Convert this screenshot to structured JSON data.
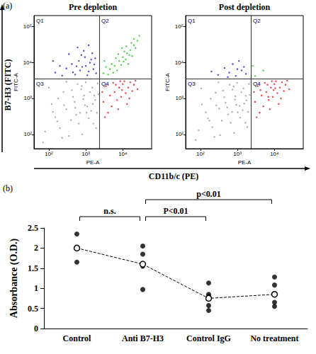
{
  "figure": {
    "panel_a": "(a)",
    "panel_b": "(b)",
    "y_label": "B7-H3 (FITC)",
    "x_label": "CD11b/c (PE)"
  },
  "chart_data": [
    {
      "type": "scatter",
      "title": "Pre depletion",
      "x_label": "PE-A",
      "y_label": "FITC-A",
      "log": true,
      "xlim": [
        40,
        60000
      ],
      "ylim": [
        40,
        200000
      ],
      "xticks": [
        {
          "value": 100,
          "label": "10²"
        },
        {
          "value": 1000,
          "label": "10³"
        },
        {
          "value": 10000,
          "label": "10⁴"
        }
      ],
      "yticks": [
        {
          "value": 100,
          "label": "10²"
        },
        {
          "value": 1000,
          "label": "10³"
        },
        {
          "value": 10000,
          "label": "10⁴"
        },
        {
          "value": 100000,
          "label": "10⁵"
        }
      ],
      "gates": {
        "x": 2300,
        "y": 3500
      },
      "quadrant_labels": [
        "Q1",
        "Q2",
        "Q3",
        "Q4"
      ],
      "series": [
        {
          "color": "#a0a0a0",
          "marker": "circle",
          "values": [
            [
              80,
              120
            ],
            [
              150,
              300
            ],
            [
              300,
              500
            ],
            [
              500,
              800
            ],
            [
              900,
              1200
            ],
            [
              1500,
              2000
            ],
            [
              200,
              150
            ],
            [
              400,
              250
            ],
            [
              700,
              400
            ],
            [
              1100,
              600
            ],
            [
              1800,
              900
            ],
            [
              120,
              700
            ],
            [
              250,
              1500
            ],
            [
              600,
              2500
            ],
            [
              1000,
              2800
            ],
            [
              2000,
              400
            ],
            [
              1600,
              200
            ],
            [
              800,
              100
            ],
            [
              350,
              90
            ],
            [
              100,
              2000
            ],
            [
              180,
              1000
            ],
            [
              450,
              1100
            ],
            [
              750,
              1800
            ],
            [
              1300,
              1500
            ],
            [
              2100,
              2600
            ],
            [
              550,
              350
            ],
            [
              950,
              650
            ],
            [
              1400,
              450
            ],
            [
              260,
              650
            ],
            [
              130,
              420
            ],
            [
              650,
              200
            ],
            [
              1200,
              280
            ],
            [
              2200,
              1300
            ],
            [
              420,
              1700
            ],
            [
              850,
              950
            ],
            [
              1700,
              1200
            ],
            [
              300,
              2900
            ],
            [
              170,
              230
            ],
            [
              70,
              60
            ],
            [
              1900,
              150
            ],
            [
              520,
              550
            ],
            [
              1050,
              400
            ],
            [
              230,
              80
            ],
            [
              780,
              2200
            ],
            [
              1550,
              700
            ]
          ]
        },
        {
          "color": "#2a2ac8",
          "marker": "circle",
          "values": [
            [
              150,
              5200
            ],
            [
              300,
              6800
            ],
            [
              520,
              4600
            ],
            [
              800,
              7500
            ],
            [
              1200,
              5600
            ],
            [
              1700,
              8800
            ],
            [
              650,
              11000
            ],
            [
              420,
              9000
            ],
            [
              950,
              14000
            ],
            [
              1400,
              12000
            ],
            [
              230,
              4300
            ],
            [
              1100,
              4400
            ],
            [
              700,
              6000
            ],
            [
              1900,
              5000
            ],
            [
              350,
              17000
            ],
            [
              880,
              21000
            ],
            [
              1500,
              18000
            ],
            [
              560,
              7800
            ],
            [
              1300,
              9800
            ],
            [
              200,
              8000
            ],
            [
              1000,
              8000
            ],
            [
              1600,
              6500
            ],
            [
              450,
              5300
            ],
            [
              760,
              16000
            ],
            [
              1800,
              13000
            ],
            [
              600,
              26000
            ],
            [
              1200,
              30000
            ],
            [
              130,
              11000
            ]
          ]
        },
        {
          "color": "#33c433",
          "marker": "circle",
          "values": [
            [
              3000,
              5000
            ],
            [
              4500,
              6500
            ],
            [
              6000,
              8000
            ],
            [
              8000,
              11000
            ],
            [
              10000,
              14000
            ],
            [
              13000,
              18000
            ],
            [
              16000,
              22000
            ],
            [
              20000,
              30000
            ],
            [
              25000,
              40000
            ],
            [
              7000,
              6000
            ],
            [
              5000,
              9000
            ],
            [
              9000,
              8500
            ],
            [
              12000,
              12000
            ],
            [
              15000,
              16000
            ],
            [
              3500,
              7500
            ],
            [
              11000,
              20000
            ],
            [
              18000,
              15000
            ],
            [
              22000,
              25000
            ],
            [
              6500,
              13000
            ],
            [
              4000,
              4600
            ],
            [
              14000,
              9000
            ],
            [
              9500,
              25000
            ],
            [
              28000,
              55000
            ],
            [
              17000,
              35000
            ],
            [
              5500,
              5200
            ],
            [
              7500,
              17000
            ],
            [
              12500,
              28000
            ],
            [
              3200,
              11000
            ],
            [
              20000,
              45000
            ],
            [
              10500,
              10500
            ]
          ]
        },
        {
          "color": "#e02020",
          "marker": "circle",
          "values": [
            [
              3000,
              800
            ],
            [
              4500,
              1200
            ],
            [
              6000,
              1500
            ],
            [
              8000,
              2000
            ],
            [
              10000,
              2500
            ],
            [
              14000,
              2000
            ],
            [
              18000,
              1600
            ],
            [
              5000,
              600
            ],
            [
              7000,
              900
            ],
            [
              9000,
              1100
            ],
            [
              12000,
              1400
            ],
            [
              3500,
              2200
            ],
            [
              5500,
              2700
            ],
            [
              11000,
              3000
            ],
            [
              16000,
              2800
            ],
            [
              20000,
              2400
            ],
            [
              25000,
              1800
            ],
            [
              7500,
              500
            ],
            [
              13000,
              700
            ],
            [
              4000,
              400
            ],
            [
              9500,
              1700
            ],
            [
              6500,
              2400
            ],
            [
              15000,
              1000
            ],
            [
              22000,
              3100
            ],
            [
              2800,
              1500
            ],
            [
              3300,
              300
            ],
            [
              8500,
              3000
            ]
          ]
        }
      ]
    },
    {
      "type": "scatter",
      "title": "Post depletion",
      "x_label": "PE-A",
      "y_label": "FITC-A",
      "log": true,
      "xlim": [
        40,
        60000
      ],
      "ylim": [
        40,
        200000
      ],
      "xticks": [
        {
          "value": 100,
          "label": "10²"
        },
        {
          "value": 1000,
          "label": "10³"
        },
        {
          "value": 10000,
          "label": "10⁴"
        }
      ],
      "yticks": [
        {
          "value": 100,
          "label": "10²"
        },
        {
          "value": 1000,
          "label": "10³"
        },
        {
          "value": 10000,
          "label": "10⁴"
        },
        {
          "value": 100000,
          "label": "10⁵"
        }
      ],
      "gates": {
        "x": 2300,
        "y": 3500
      },
      "quadrant_labels": [
        "Q1",
        "Q2",
        "Q3",
        "Q4"
      ],
      "series": [
        {
          "color": "#a0a0a0",
          "marker": "circle",
          "values": [
            [
              90,
              130
            ],
            [
              160,
              280
            ],
            [
              320,
              520
            ],
            [
              480,
              760
            ],
            [
              880,
              1150
            ],
            [
              1450,
              1900
            ],
            [
              210,
              160
            ],
            [
              380,
              240
            ],
            [
              720,
              420
            ],
            [
              1150,
              620
            ],
            [
              1750,
              880
            ],
            [
              110,
              680
            ],
            [
              260,
              1450
            ],
            [
              620,
              2400
            ],
            [
              980,
              2700
            ],
            [
              1950,
              420
            ],
            [
              1650,
              210
            ],
            [
              820,
              110
            ],
            [
              340,
              95
            ],
            [
              105,
              1900
            ],
            [
              190,
              980
            ],
            [
              440,
              1080
            ],
            [
              740,
              1750
            ],
            [
              1280,
              1480
            ],
            [
              2050,
              2500
            ],
            [
              560,
              360
            ],
            [
              930,
              660
            ],
            [
              1380,
              470
            ],
            [
              270,
              640
            ],
            [
              140,
              410
            ],
            [
              660,
              210
            ],
            [
              1180,
              290
            ],
            [
              2150,
              1250
            ],
            [
              410,
              1650
            ],
            [
              860,
              920
            ],
            [
              1680,
              1180
            ],
            [
              310,
              2800
            ],
            [
              175,
              240
            ],
            [
              75,
              70
            ],
            [
              1850,
              160
            ],
            [
              530,
              560
            ],
            [
              1020,
              410
            ],
            [
              240,
              85
            ],
            [
              790,
              2150
            ],
            [
              1520,
              720
            ]
          ]
        },
        {
          "color": "#2a2ac8",
          "marker": "circle",
          "values": [
            [
              300,
              4500
            ],
            [
              600,
              5200
            ],
            [
              900,
              4200
            ],
            [
              1300,
              6000
            ],
            [
              450,
              7000
            ],
            [
              1700,
              4800
            ],
            [
              750,
              9000
            ],
            [
              200,
              5600
            ],
            [
              1100,
              11000
            ],
            [
              1500,
              7500
            ],
            [
              550,
              3900
            ],
            [
              1000,
              6500
            ]
          ]
        },
        {
          "color": "#33c433",
          "marker": "circle",
          "values": [
            [
              3000,
              4200
            ],
            [
              5000,
              6000
            ],
            [
              2600,
              8000
            ]
          ]
        },
        {
          "color": "#e02020",
          "marker": "circle",
          "values": [
            [
              3000,
              800
            ],
            [
              4500,
              1200
            ],
            [
              6000,
              1500
            ],
            [
              8000,
              2000
            ],
            [
              10000,
              2500
            ],
            [
              14000,
              2000
            ],
            [
              18000,
              1600
            ],
            [
              5000,
              600
            ],
            [
              7000,
              900
            ],
            [
              9000,
              1100
            ],
            [
              12000,
              1400
            ],
            [
              3500,
              2200
            ],
            [
              5500,
              2700
            ],
            [
              11000,
              3000
            ],
            [
              16000,
              2800
            ],
            [
              20000,
              2400
            ],
            [
              25000,
              1800
            ],
            [
              7500,
              500
            ],
            [
              13000,
              700
            ],
            [
              4000,
              400
            ],
            [
              9500,
              1700
            ],
            [
              6500,
              2400
            ],
            [
              15000,
              1000
            ],
            [
              22000,
              3100
            ],
            [
              2800,
              1500
            ],
            [
              3300,
              300
            ],
            [
              8500,
              3000
            ],
            [
              6800,
              1100
            ],
            [
              10500,
              1900
            ],
            [
              4200,
              1700
            ]
          ]
        }
      ]
    },
    {
      "type": "scatter",
      "y_label": "Absorbance (O.D.)",
      "categories": [
        "Control",
        "Anti B7-H3",
        "Control IgG",
        "No treatment"
      ],
      "ylim": [
        0,
        2.5
      ],
      "yticks": [
        0,
        0.5,
        1,
        1.5,
        2,
        2.5
      ],
      "grid": false,
      "series": [
        {
          "type": "scatter",
          "color": "#000000",
          "marker": "circle",
          "values": [
            [
              2.35,
              2.0,
              2.0,
              1.65
            ],
            [
              2.05,
              1.85,
              1.55,
              0.97
            ],
            [
              1.13,
              0.85,
              0.8,
              0.57,
              0.45
            ],
            [
              1.28,
              1.08,
              0.65,
              0.55
            ]
          ]
        },
        {
          "type": "line",
          "color": "#000000",
          "marker": "open circle",
          "line_style": "dashed",
          "values": [
            2.0,
            1.6,
            0.75,
            0.85
          ]
        }
      ],
      "annotations": [
        {
          "text": "n.s.",
          "from": "Control",
          "to": "Anti B7-H3"
        },
        {
          "text": "P<0.01",
          "from": "Anti B7-H3",
          "to": "Control IgG"
        },
        {
          "text": "p<0.01",
          "from": "Anti B7-H3",
          "to": "No treatment"
        }
      ]
    }
  ]
}
